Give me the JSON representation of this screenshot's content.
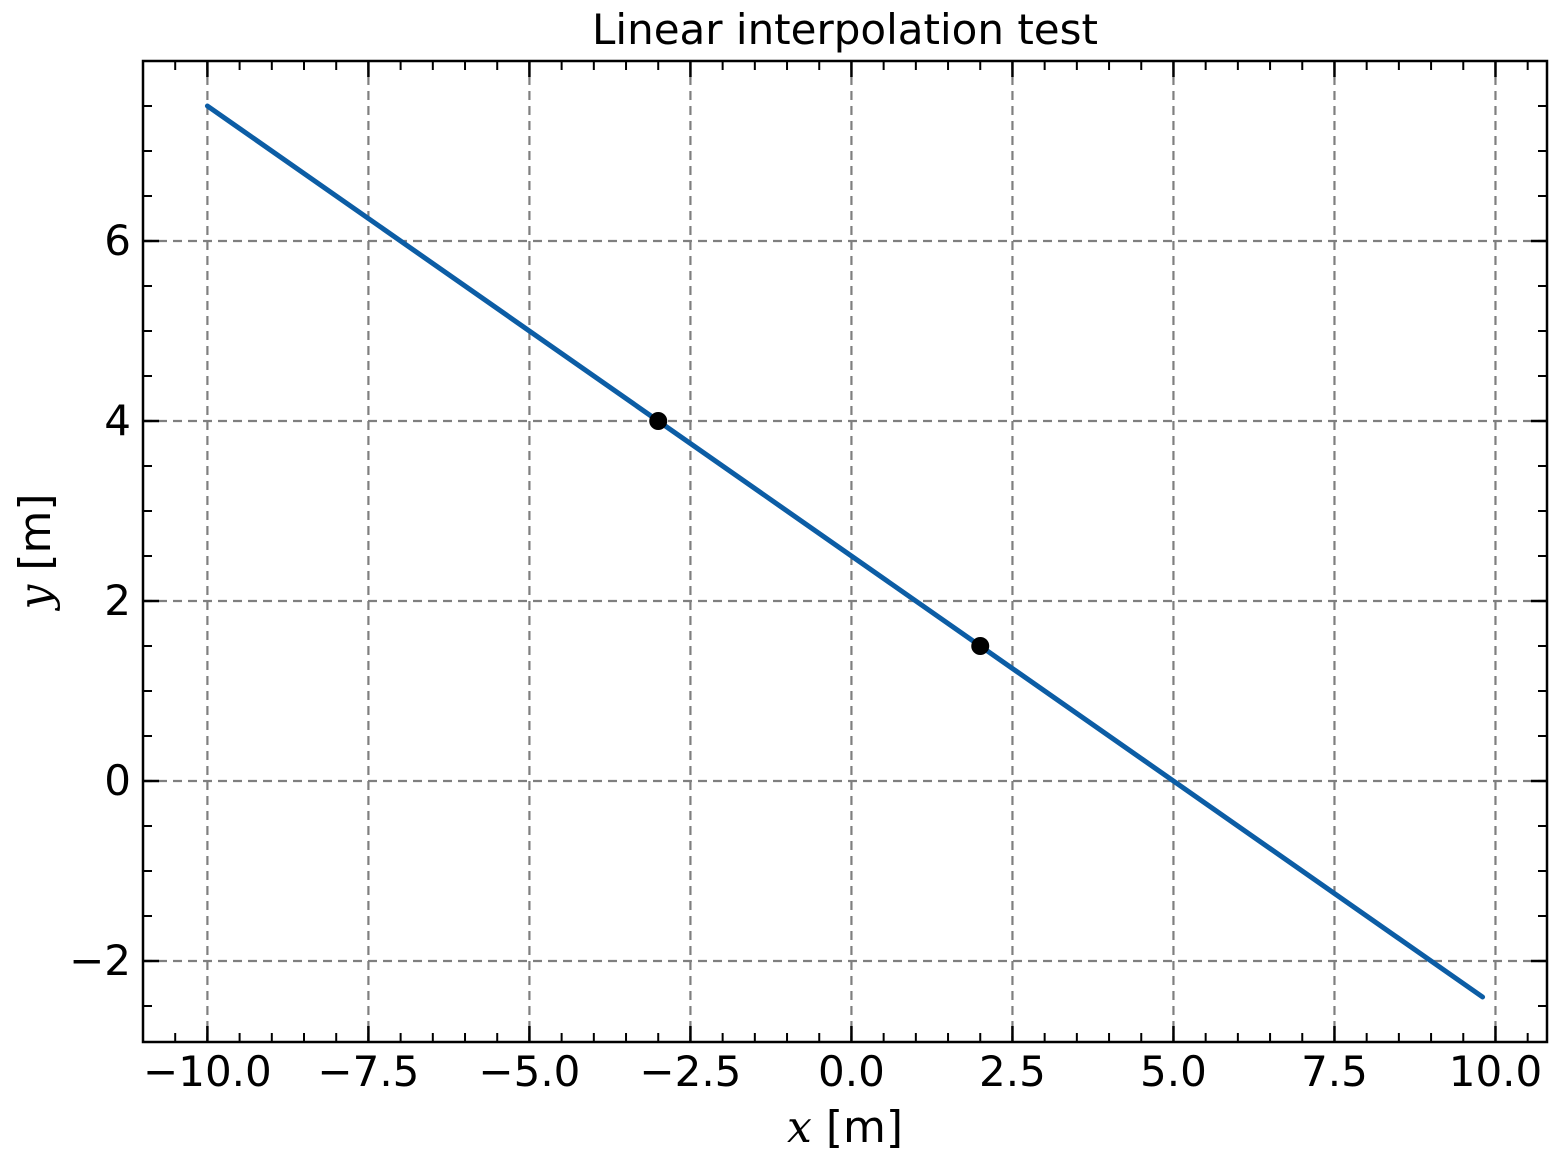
{
  "chart_data": {
    "type": "line",
    "title": "Linear interpolation test",
    "xlabel": {
      "var": "x",
      "unit": "[m]"
    },
    "ylabel": {
      "var": "y",
      "unit": "[m]"
    },
    "xlim": [
      -11.0,
      10.8
    ],
    "ylim": [
      -2.9,
      8.0
    ],
    "x_ticks": [
      -10.0,
      -7.5,
      -5.0,
      -2.5,
      0.0,
      2.5,
      5.0,
      7.5,
      10.0
    ],
    "x_tick_labels": [
      "−10.0",
      "−7.5",
      "−5.0",
      "−2.5",
      "0.0",
      "2.5",
      "5.0",
      "7.5",
      "10.0"
    ],
    "y_ticks": [
      -2,
      0,
      2,
      4,
      6
    ],
    "y_tick_labels": [
      "−2",
      "0",
      "2",
      "4",
      "6"
    ],
    "x_minor_step": 0.5,
    "y_minor_step": 0.5,
    "grid": true,
    "series": [
      {
        "x": [
          -10.0,
          9.8
        ],
        "y": [
          7.5,
          -2.4
        ],
        "color": "#0C5DA5"
      }
    ],
    "points": [
      {
        "x": -3.0,
        "y": 4.0,
        "color": "#000000"
      },
      {
        "x": 2.0,
        "y": 1.5,
        "color": "#000000"
      }
    ]
  }
}
